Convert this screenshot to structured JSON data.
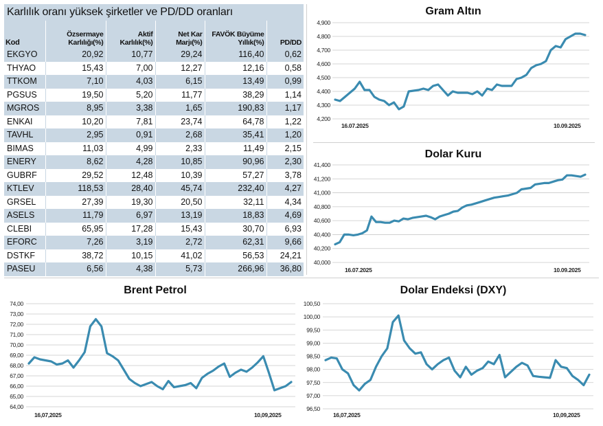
{
  "table": {
    "title": "Karlılık oranı yüksek şirketler ve PD/DD oranları",
    "headers": [
      "Kod",
      "Özsermaye Karlılığı(%)",
      "Aktif Karlılık(%)",
      "Net Kar Marjı(%)",
      "FAVÖK Büyüme Yıllık(%)",
      "PD/DD"
    ],
    "rows": [
      [
        "EKGYO",
        "20,92",
        "10,77",
        "29,24",
        "116,40",
        "0,62"
      ],
      [
        "THYAO",
        "15,43",
        "7,00",
        "12,27",
        "12,16",
        "0,58"
      ],
      [
        "TTKOM",
        "7,10",
        "4,03",
        "6,15",
        "13,49",
        "0,99"
      ],
      [
        "PGSUS",
        "19,50",
        "5,20",
        "11,77",
        "38,29",
        "1,14"
      ],
      [
        "MGROS",
        "8,95",
        "3,38",
        "1,65",
        "190,83",
        "1,17"
      ],
      [
        "ENKAI",
        "10,20",
        "7,81",
        "23,74",
        "64,78",
        "1,22"
      ],
      [
        "TAVHL",
        "2,95",
        "0,91",
        "2,68",
        "35,41",
        "1,20"
      ],
      [
        "BIMAS",
        "11,03",
        "4,99",
        "2,33",
        "11,49",
        "2,15"
      ],
      [
        "ENERY",
        "8,62",
        "4,28",
        "10,85",
        "90,96",
        "2,30"
      ],
      [
        "GUBRF",
        "29,52",
        "12,48",
        "10,39",
        "57,27",
        "3,78"
      ],
      [
        "KTLEV",
        "118,53",
        "28,40",
        "45,74",
        "232,40",
        "4,27"
      ],
      [
        "GRSEL",
        "27,39",
        "19,30",
        "20,50",
        "32,11",
        "4,34"
      ],
      [
        "ASELS",
        "11,79",
        "6,97",
        "13,19",
        "18,83",
        "4,69"
      ],
      [
        "CLEBI",
        "65,95",
        "17,28",
        "15,43",
        "30,70",
        "6,93"
      ],
      [
        "EFORC",
        "7,26",
        "3,19",
        "2,72",
        "62,31",
        "9,66"
      ],
      [
        "DSTKF",
        "38,72",
        "10,15",
        "41,02",
        "56,53",
        "24,21"
      ],
      [
        "PASEU",
        "6,56",
        "4,38",
        "5,73",
        "266,96",
        "36,80"
      ]
    ]
  },
  "colors": {
    "line": "#3a8bb0",
    "table_band": "#c9d7e3",
    "grid": "#c8c8c8"
  },
  "chart_data": [
    {
      "id": "gold",
      "type": "line",
      "title": "Gram Altın",
      "ylim": [
        4200,
        4900
      ],
      "yticks": [
        "4,200",
        "4,300",
        "4,400",
        "4,500",
        "4,600",
        "4,700",
        "4,800",
        "4,900"
      ],
      "xtick_labels": [
        "16.07.2025",
        "10.09.2025"
      ],
      "grid": true,
      "values": [
        4340,
        4330,
        4360,
        4390,
        4420,
        4470,
        4410,
        4410,
        4360,
        4340,
        4330,
        4300,
        4320,
        4270,
        4290,
        4400,
        4405,
        4410,
        4420,
        4410,
        4440,
        4450,
        4410,
        4370,
        4400,
        4390,
        4390,
        4390,
        4380,
        4400,
        4370,
        4420,
        4410,
        4450,
        4440,
        4440,
        4440,
        4490,
        4500,
        4520,
        4570,
        4590,
        4600,
        4620,
        4700,
        4730,
        4720,
        4780,
        4800,
        4820,
        4820,
        4810
      ]
    },
    {
      "id": "usd",
      "type": "line",
      "title": "Dolar Kuru",
      "ylim": [
        40000,
        41400
      ],
      "yticks": [
        "40,000",
        "40,200",
        "40,400",
        "40,600",
        "40,800",
        "41,000",
        "41,200",
        "41,400"
      ],
      "xtick_labels": [
        "16.07.2025",
        "10.09.2025"
      ],
      "grid": true,
      "values": [
        40260,
        40290,
        40400,
        40400,
        40390,
        40400,
        40420,
        40460,
        40660,
        40580,
        40580,
        40570,
        40570,
        40600,
        40590,
        40630,
        40620,
        40640,
        40650,
        40660,
        40670,
        40650,
        40620,
        40660,
        40680,
        40700,
        40730,
        40740,
        40790,
        40820,
        40830,
        40850,
        40870,
        40890,
        40910,
        40930,
        40940,
        40950,
        40960,
        40980,
        41000,
        41050,
        41060,
        41070,
        41120,
        41130,
        41140,
        41140,
        41160,
        41180,
        41190,
        41250,
        41250,
        41240,
        41230,
        41260
      ]
    },
    {
      "id": "brent",
      "type": "line",
      "title": "Brent Petrol",
      "ylim": [
        64,
        74
      ],
      "yticks": [
        "64,00",
        "65,00",
        "66,00",
        "67,00",
        "68,00",
        "69,00",
        "70,00",
        "71,00",
        "72,00",
        "73,00",
        "74,00"
      ],
      "xtick_labels": [
        "16,07,2025",
        "10,09,2025"
      ],
      "grid": true,
      "values": [
        68.2,
        68.8,
        68.6,
        68.5,
        68.4,
        68.1,
        68.2,
        68.5,
        67.8,
        68.5,
        69.3,
        71.8,
        72.5,
        71.8,
        69.2,
        68.9,
        68.5,
        67.6,
        66.7,
        66.3,
        66.0,
        66.2,
        66.4,
        66.0,
        65.7,
        66.5,
        65.9,
        66.0,
        66.1,
        66.3,
        65.8,
        66.8,
        67.2,
        67.5,
        67.9,
        68.2,
        66.9,
        67.3,
        67.6,
        67.4,
        67.8,
        68.3,
        68.9,
        67.3,
        65.6,
        65.8,
        66.0,
        66.4
      ]
    },
    {
      "id": "dxy",
      "type": "line",
      "title": "Dolar Endeksi (DXY)",
      "ylim": [
        96.5,
        100.5
      ],
      "yticks": [
        "96,50",
        "97,00",
        "97,50",
        "98,00",
        "98,50",
        "99,00",
        "99,50",
        "100,00",
        "100,50"
      ],
      "xtick_labels": [
        "16,07,2025",
        "10,09,2025"
      ],
      "grid": true,
      "values": [
        98.35,
        98.45,
        98.42,
        98.0,
        97.85,
        97.4,
        97.2,
        97.45,
        97.6,
        98.1,
        98.5,
        98.8,
        99.8,
        100.05,
        99.1,
        98.8,
        98.6,
        98.65,
        98.2,
        98.0,
        98.2,
        98.35,
        98.45,
        97.95,
        97.7,
        98.1,
        97.8,
        97.95,
        98.05,
        98.3,
        98.2,
        98.55,
        97.7,
        97.9,
        98.1,
        98.25,
        98.15,
        97.75,
        97.72,
        97.7,
        97.68,
        98.35,
        98.1,
        98.05,
        97.75,
        97.6,
        97.4,
        97.8
      ]
    }
  ]
}
